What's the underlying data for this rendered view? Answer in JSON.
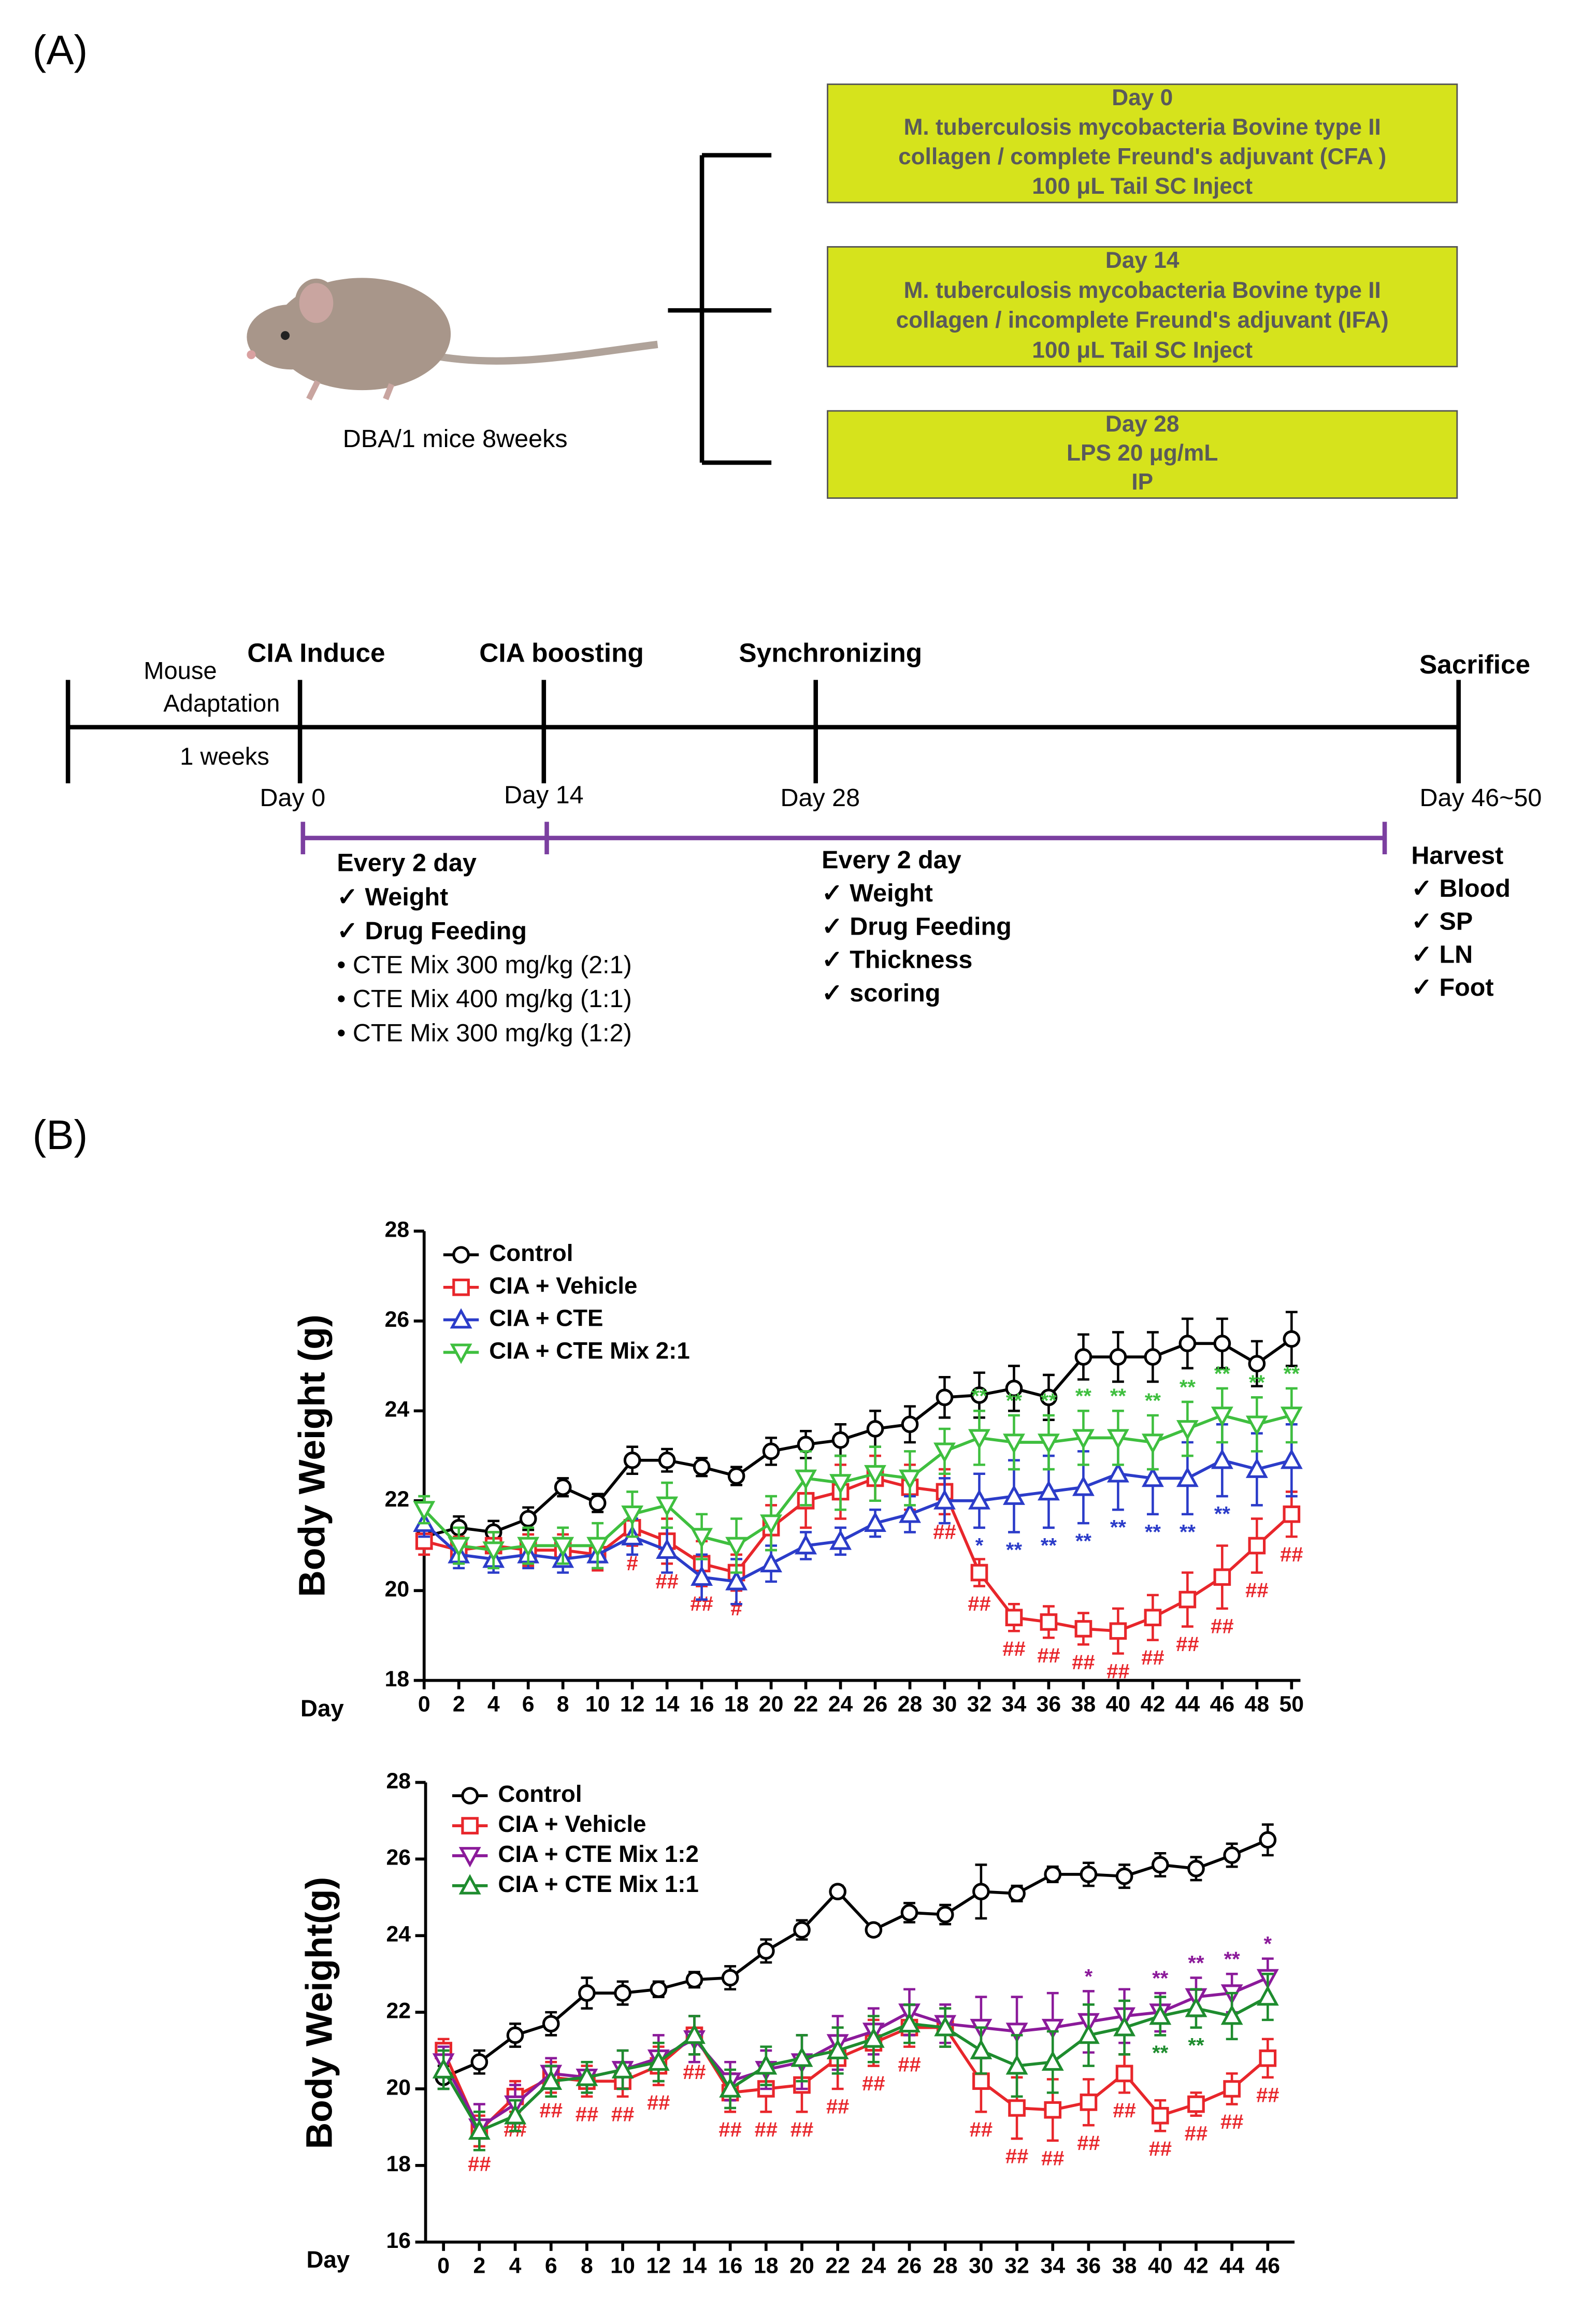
{
  "panel_a": {
    "label": "(A)",
    "mouse_caption": "DBA/1 mice   8weeks",
    "boxes": [
      {
        "lines": [
          "Day 0",
          "M. tuberculosis mycobacteria Bovine type II",
          "collagen / complete Freund's adjuvant (CFA )",
          "100 μL  Tail SC Inject"
        ]
      },
      {
        "lines": [
          "Day 14",
          "M. tuberculosis mycobacteria Bovine type II",
          "collagen / incomplete Freund's adjuvant (IFA)",
          "100 μL  Tail SC Inject"
        ]
      },
      {
        "lines": [
          "Day 28",
          "LPS 20 μg/mL",
          "IP"
        ]
      }
    ],
    "timeline": {
      "adaptation": [
        "Mouse",
        "Adaptation",
        "1 weeks"
      ],
      "events": [
        "CIA Induce",
        "CIA boosting",
        "Synchronizing",
        "Sacrifice"
      ],
      "days": [
        "Day 0",
        "Day 14",
        "Day 28",
        "Day 46~50"
      ],
      "phase1": [
        "Every 2 day",
        "✓  Weight",
        "✓  Drug Feeding",
        "•   CTE Mix 300 mg/kg (2:1)",
        "•   CTE Mix 400 mg/kg (1:1)",
        "•   CTE Mix 300 mg/kg (1:2)"
      ],
      "phase2": [
        "Every 2 day",
        "✓  Weight",
        "✓  Drug Feeding",
        "✓  Thickness",
        "✓  scoring"
      ],
      "harvest": [
        "Harvest",
        "✓  Blood",
        "✓  SP",
        "✓  LN",
        "✓  Foot"
      ]
    }
  },
  "panel_b": {
    "label": "(B)"
  },
  "chart_data": [
    {
      "type": "line",
      "ylabel": "Body Weight (g)",
      "xlabel": "Day",
      "xlim": [
        0,
        50
      ],
      "ylim": [
        18,
        28
      ],
      "x": [
        0,
        2,
        4,
        6,
        8,
        10,
        12,
        14,
        16,
        18,
        20,
        22,
        24,
        26,
        28,
        30,
        32,
        34,
        36,
        38,
        40,
        42,
        44,
        46,
        48,
        50
      ],
      "xticks": [
        0,
        2,
        4,
        6,
        8,
        10,
        12,
        14,
        16,
        18,
        20,
        22,
        24,
        26,
        28,
        30,
        32,
        34,
        36,
        38,
        40,
        42,
        44,
        46,
        48,
        50
      ],
      "yticks": [
        18,
        20,
        22,
        24,
        26,
        28
      ],
      "series": [
        {
          "name": "Control",
          "color": "#000000",
          "marker": "circle",
          "values": [
            21.2,
            21.4,
            21.3,
            21.6,
            22.3,
            21.95,
            22.9,
            22.9,
            22.75,
            22.55,
            23.1,
            23.25,
            23.35,
            23.6,
            23.7,
            24.3,
            24.35,
            24.5,
            24.3,
            25.2,
            25.2,
            25.2,
            25.5,
            25.5,
            25.05,
            25.6
          ],
          "errors": [
            0.2,
            0.25,
            0.25,
            0.25,
            0.2,
            0.2,
            0.3,
            0.25,
            0.2,
            0.2,
            0.3,
            0.3,
            0.35,
            0.4,
            0.4,
            0.45,
            0.5,
            0.5,
            0.5,
            0.5,
            0.55,
            0.55,
            0.55,
            0.55,
            0.5,
            0.6
          ]
        },
        {
          "name": "CIA + Vehicle",
          "color": "#e8262b",
          "marker": "square",
          "values": [
            21.1,
            20.9,
            21.0,
            20.9,
            20.9,
            20.8,
            21.4,
            21.1,
            20.6,
            20.4,
            21.4,
            22.0,
            22.2,
            22.5,
            22.3,
            22.2,
            20.4,
            19.4,
            19.3,
            19.15,
            19.1,
            19.4,
            19.8,
            20.3,
            21.0,
            21.7
          ],
          "errors": [
            0.3,
            0.3,
            0.3,
            0.35,
            0.35,
            0.35,
            0.4,
            0.5,
            0.5,
            0.4,
            0.5,
            0.6,
            0.6,
            0.5,
            0.5,
            0.5,
            0.3,
            0.3,
            0.35,
            0.35,
            0.5,
            0.5,
            0.6,
            0.7,
            0.6,
            0.5
          ],
          "sig": [
            null,
            null,
            null,
            null,
            null,
            null,
            "#",
            "##",
            "##",
            "#",
            null,
            null,
            null,
            null,
            null,
            "##",
            "##",
            "##",
            "##",
            "##",
            "##",
            "##",
            "##",
            "##",
            "##",
            "##"
          ]
        },
        {
          "name": "CIA + CTE",
          "color": "#2b3cc9",
          "marker": "tri-up",
          "values": [
            21.5,
            20.8,
            20.7,
            20.8,
            20.7,
            20.8,
            21.2,
            20.9,
            20.3,
            20.2,
            20.6,
            21.0,
            21.1,
            21.5,
            21.7,
            22.0,
            22.0,
            22.1,
            22.2,
            22.3,
            22.6,
            22.5,
            22.5,
            22.9,
            22.7,
            22.9
          ],
          "errors": [
            0.3,
            0.3,
            0.3,
            0.3,
            0.3,
            0.3,
            0.4,
            0.5,
            0.5,
            0.5,
            0.4,
            0.3,
            0.3,
            0.3,
            0.4,
            0.5,
            0.6,
            0.8,
            0.8,
            0.8,
            0.8,
            0.8,
            0.8,
            0.8,
            0.8,
            0.8
          ],
          "sig": [
            null,
            null,
            null,
            null,
            null,
            null,
            null,
            null,
            null,
            null,
            null,
            null,
            null,
            null,
            null,
            null,
            "*",
            "**",
            "**",
            "**",
            "**",
            "**",
            "**",
            "**",
            null,
            null
          ]
        },
        {
          "name": "CIA + CTE Mix  2:1",
          "color": "#3fbf3f",
          "marker": "tri-down",
          "values": [
            21.8,
            21.0,
            20.9,
            21.0,
            21.0,
            21.0,
            21.7,
            21.9,
            21.2,
            21.0,
            21.5,
            22.5,
            22.4,
            22.6,
            22.5,
            23.1,
            23.4,
            23.3,
            23.3,
            23.4,
            23.4,
            23.3,
            23.6,
            23.9,
            23.7,
            23.9
          ],
          "errors": [
            0.3,
            0.4,
            0.4,
            0.4,
            0.4,
            0.5,
            0.5,
            0.5,
            0.5,
            0.6,
            0.6,
            0.6,
            0.6,
            0.6,
            0.6,
            0.5,
            0.6,
            0.6,
            0.6,
            0.6,
            0.6,
            0.6,
            0.6,
            0.6,
            0.6,
            0.6
          ],
          "sig": [
            null,
            null,
            null,
            null,
            null,
            null,
            null,
            null,
            null,
            null,
            null,
            null,
            null,
            null,
            null,
            null,
            "**",
            "**",
            "**",
            "**",
            "**",
            "**",
            "**",
            "**",
            "**",
            "**"
          ]
        }
      ]
    },
    {
      "type": "line",
      "ylabel": "Body Weight(g)",
      "xlabel": "Day",
      "xlim": [
        -1,
        47
      ],
      "ylim": [
        16,
        28
      ],
      "x": [
        0,
        2,
        4,
        6,
        8,
        10,
        12,
        14,
        16,
        18,
        20,
        22,
        24,
        26,
        28,
        30,
        32,
        34,
        36,
        38,
        40,
        42,
        44,
        46
      ],
      "xticks": [
        0,
        2,
        4,
        6,
        8,
        10,
        12,
        14,
        16,
        18,
        20,
        22,
        24,
        26,
        28,
        30,
        32,
        34,
        36,
        38,
        40,
        42,
        44,
        46
      ],
      "yticks": [
        16,
        18,
        20,
        22,
        24,
        26,
        28
      ],
      "series": [
        {
          "name": "Control",
          "color": "#000000",
          "marker": "circle",
          "values": [
            20.3,
            20.7,
            21.4,
            21.7,
            22.5,
            22.5,
            22.6,
            22.85,
            22.9,
            23.6,
            24.15,
            25.15,
            24.15,
            24.6,
            24.55,
            25.15,
            25.1,
            25.6,
            25.6,
            25.55,
            25.85,
            25.75,
            26.1,
            26.5
          ],
          "errors": [
            0.3,
            0.3,
            0.3,
            0.3,
            0.4,
            0.3,
            0.2,
            0.2,
            0.3,
            0.3,
            0.25,
            0.15,
            0.15,
            0.25,
            0.25,
            0.7,
            0.2,
            0.2,
            0.3,
            0.3,
            0.3,
            0.3,
            0.3,
            0.4
          ]
        },
        {
          "name": "CIA + Vehicle",
          "color": "#e8262b",
          "marker": "square",
          "values": [
            21.0,
            18.9,
            19.8,
            20.3,
            20.2,
            20.2,
            20.6,
            21.4,
            19.9,
            20.0,
            20.1,
            20.8,
            21.2,
            21.6,
            21.6,
            20.2,
            19.5,
            19.45,
            19.65,
            20.4,
            19.3,
            19.6,
            20.0,
            20.8
          ],
          "errors": [
            0.3,
            0.4,
            0.4,
            0.4,
            0.4,
            0.4,
            0.5,
            0.5,
            0.5,
            0.6,
            0.7,
            0.8,
            0.6,
            0.5,
            0.5,
            0.8,
            0.8,
            0.8,
            0.6,
            0.5,
            0.4,
            0.3,
            0.4,
            0.5
          ],
          "sig": [
            null,
            "##",
            "##",
            "##",
            "##",
            "##",
            "##",
            "##",
            "##",
            "##",
            "##",
            "##",
            "##",
            "##",
            null,
            "##",
            "##",
            "##",
            "##",
            "##",
            "##",
            "##",
            "##",
            "##"
          ]
        },
        {
          "name": "CIA + CTE Mix 1:2",
          "color": "#8b1a9a",
          "marker": "tri-down",
          "values": [
            20.7,
            19.0,
            19.6,
            20.4,
            20.3,
            20.5,
            20.8,
            21.3,
            20.2,
            20.5,
            20.7,
            21.2,
            21.5,
            22.0,
            21.7,
            21.6,
            21.5,
            21.6,
            21.75,
            21.9,
            22.0,
            22.4,
            22.5,
            22.9
          ],
          "errors": [
            0.4,
            0.6,
            0.5,
            0.4,
            0.4,
            0.5,
            0.6,
            0.6,
            0.5,
            0.5,
            0.7,
            0.7,
            0.6,
            0.6,
            0.5,
            0.8,
            0.9,
            0.9,
            0.8,
            0.7,
            0.5,
            0.5,
            0.5,
            0.5
          ],
          "sig": [
            null,
            null,
            null,
            null,
            null,
            null,
            null,
            null,
            null,
            null,
            null,
            null,
            null,
            null,
            null,
            null,
            null,
            null,
            "*",
            null,
            "**",
            "**",
            "**",
            "*"
          ]
        },
        {
          "name": "CIA + CTE Mix 1:1",
          "color": "#1e8c2e",
          "marker": "tri-up",
          "values": [
            20.5,
            18.9,
            19.3,
            20.2,
            20.3,
            20.5,
            20.7,
            21.4,
            20.0,
            20.6,
            20.8,
            21.0,
            21.3,
            21.7,
            21.6,
            21.0,
            20.6,
            20.7,
            21.4,
            21.6,
            21.9,
            22.1,
            21.9,
            22.4
          ],
          "errors": [
            0.5,
            0.5,
            0.4,
            0.4,
            0.4,
            0.5,
            0.5,
            0.5,
            0.5,
            0.5,
            0.6,
            0.6,
            0.6,
            0.5,
            0.5,
            0.6,
            0.8,
            0.8,
            0.8,
            0.7,
            0.5,
            0.5,
            0.6,
            0.6
          ],
          "sig": [
            null,
            null,
            null,
            null,
            null,
            null,
            null,
            null,
            null,
            null,
            null,
            null,
            null,
            null,
            null,
            null,
            null,
            null,
            null,
            null,
            "**",
            "**",
            null,
            null
          ]
        }
      ]
    }
  ]
}
